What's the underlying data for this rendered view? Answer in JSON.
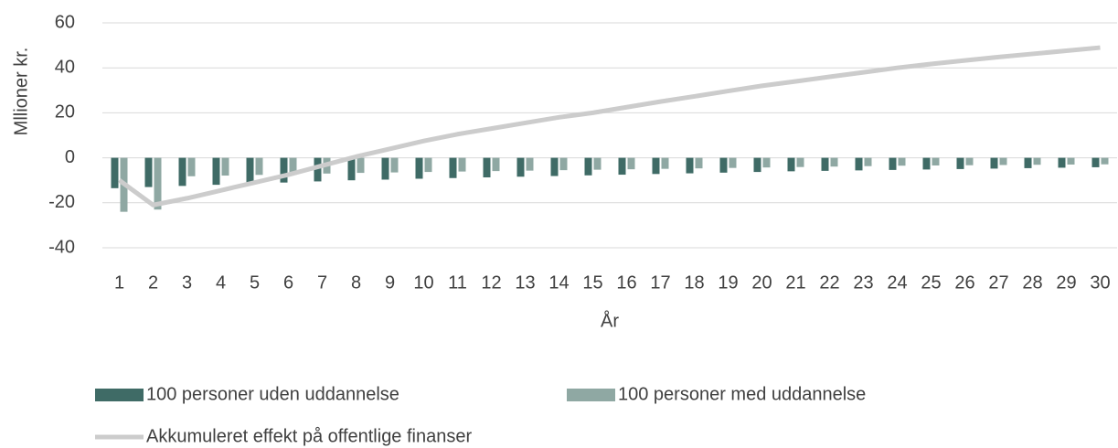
{
  "chart_data": {
    "type": "bar",
    "categories": [
      "1",
      "2",
      "3",
      "4",
      "5",
      "6",
      "7",
      "8",
      "9",
      "10",
      "11",
      "12",
      "13",
      "14",
      "15",
      "16",
      "17",
      "18",
      "19",
      "20",
      "21",
      "22",
      "23",
      "24",
      "25",
      "26",
      "27",
      "28",
      "29",
      "30"
    ],
    "series": [
      {
        "name": "100 personer uden uddannelse",
        "color": "#3f6b66",
        "type": "bar",
        "values": [
          -13.5,
          -13,
          -12.5,
          -12,
          -11.5,
          -11,
          -10.5,
          -10,
          -9.7,
          -9.3,
          -9,
          -8.7,
          -8.4,
          -8.1,
          -7.8,
          -7.5,
          -7.2,
          -6.9,
          -6.6,
          -6.3,
          -6,
          -5.8,
          -5.6,
          -5.4,
          -5.2,
          -5,
          -4.8,
          -4.6,
          -4.4,
          -4.2
        ]
      },
      {
        "name": "100 personer med uddannelse",
        "color": "#8fa8a3",
        "type": "bar",
        "values": [
          -24,
          -23,
          -8.2,
          -7.9,
          -7.6,
          -7.3,
          -7,
          -6.7,
          -6.5,
          -6.3,
          -6.1,
          -5.9,
          -5.7,
          -5.5,
          -5.3,
          -5.1,
          -4.9,
          -4.7,
          -4.5,
          -4.3,
          -4.1,
          -3.9,
          -3.7,
          -3.5,
          -3.4,
          -3.3,
          -3.2,
          -3.1,
          -3,
          -2.9
        ]
      },
      {
        "name": "Akkumuleret effekt på offentlige finanser",
        "color": "#cccccc",
        "type": "line",
        "values": [
          -10,
          -21,
          -18,
          -14.5,
          -11,
          -7.5,
          -3.5,
          0.5,
          4,
          7.5,
          10.5,
          13,
          15.5,
          18,
          20,
          22.5,
          25,
          27.3,
          29.7,
          32,
          34,
          36,
          38,
          40,
          41.7,
          43.3,
          44.8,
          46.2,
          47.6,
          49
        ]
      }
    ],
    "x_label": "År",
    "y_label": "Mllioner kr.",
    "ylim": [
      -40,
      60
    ],
    "yticks": [
      -40,
      -20,
      0,
      20,
      40,
      60
    ],
    "grid": true
  }
}
